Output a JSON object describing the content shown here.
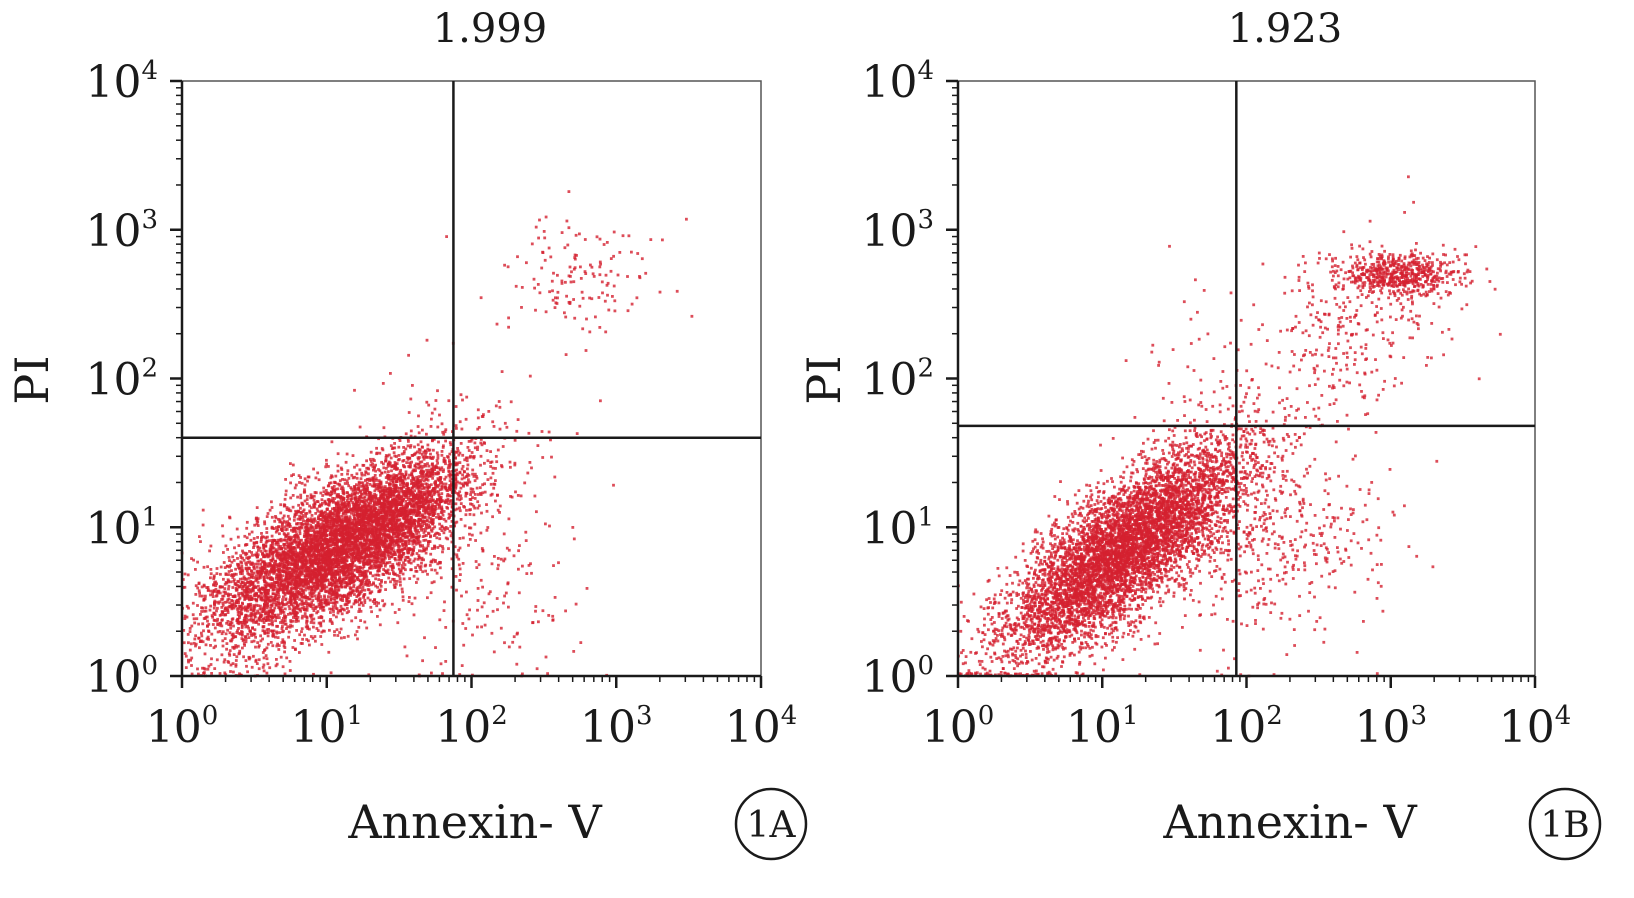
{
  "chart_data": [
    {
      "type": "scatter",
      "panel": "1A",
      "title": "1.999",
      "xlabel": "Annexin- V",
      "ylabel": "PI",
      "x_scale": "log",
      "y_scale": "log",
      "xlim": [
        1,
        10000
      ],
      "ylim": [
        1,
        10000
      ],
      "x_ticks": [
        "10^0",
        "10^1",
        "10^2",
        "10^3",
        "10^4"
      ],
      "y_ticks": [
        "10^0",
        "10^1",
        "10^2",
        "10^3",
        "10^4"
      ],
      "quadrant_gates": {
        "x": 75,
        "y": 40
      },
      "point_color": "#d42030",
      "grid": false,
      "populations": [
        {
          "description": "main cluster",
          "center_log": [
            1.05,
            0.85
          ],
          "spread_log": [
            0.45,
            0.32
          ],
          "corr": 0.7,
          "count": 6500
        },
        {
          "description": "tail to gate",
          "center_log": [
            1.5,
            1.1
          ],
          "spread_log": [
            0.2,
            0.2
          ],
          "corr": 0.5,
          "count": 800
        },
        {
          "description": "lower-right scattered",
          "center_log": [
            2.1,
            0.6
          ],
          "spread_log": [
            0.35,
            0.35
          ],
          "corr": 0.0,
          "count": 170
        },
        {
          "description": "upper-right cluster",
          "center_log": [
            2.75,
            2.65
          ],
          "spread_log": [
            0.28,
            0.22
          ],
          "corr": 0.0,
          "count": 140
        },
        {
          "description": "upper-left sparse",
          "center_log": [
            1.5,
            2.2
          ],
          "spread_log": [
            0.25,
            0.6
          ],
          "corr": 0.0,
          "count": 14
        }
      ]
    },
    {
      "type": "scatter",
      "panel": "1B",
      "title": "1.923",
      "xlabel": "Annexin- V",
      "ylabel": "PI",
      "x_scale": "log",
      "y_scale": "log",
      "xlim": [
        1,
        10000
      ],
      "ylim": [
        1,
        10000
      ],
      "x_ticks": [
        "10^0",
        "10^1",
        "10^2",
        "10^3",
        "10^4"
      ],
      "y_ticks": [
        "10^0",
        "10^1",
        "10^2",
        "10^3",
        "10^4"
      ],
      "quadrant_gates": {
        "x": 85,
        "y": 48
      },
      "point_color": "#d42030",
      "grid": false,
      "populations": [
        {
          "description": "main cluster",
          "center_log": [
            1.15,
            0.85
          ],
          "spread_log": [
            0.42,
            0.36
          ],
          "corr": 0.78,
          "count": 6000
        },
        {
          "description": "lower-right scattered",
          "center_log": [
            2.2,
            0.9
          ],
          "spread_log": [
            0.4,
            0.35
          ],
          "corr": 0.2,
          "count": 450
        },
        {
          "description": "upper-right main cluster",
          "center_log": [
            3.05,
            2.7
          ],
          "spread_log": [
            0.22,
            0.07
          ],
          "corr": 0.0,
          "count": 550
        },
        {
          "description": "upper-right band",
          "center_log": [
            2.7,
            2.35
          ],
          "spread_log": [
            0.35,
            0.3
          ],
          "corr": 0.3,
          "count": 300
        },
        {
          "description": "upper-left sparse",
          "center_log": [
            1.7,
            2.0
          ],
          "spread_log": [
            0.25,
            0.45
          ],
          "corr": 0.0,
          "count": 40
        }
      ]
    }
  ]
}
